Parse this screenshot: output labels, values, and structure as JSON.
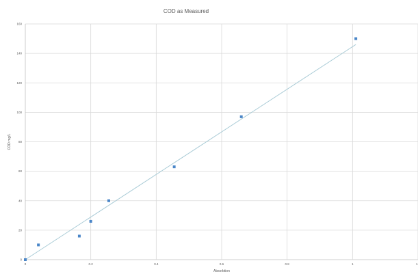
{
  "chart_data": {
    "type": "scatter",
    "title": "COD as Measured",
    "xlabel": "Absorbtion",
    "ylabel": "COD mg/L",
    "xlim": [
      0,
      1.2
    ],
    "ylim": [
      0,
      160
    ],
    "xticks": [
      "0",
      "0.2",
      "0.4",
      "0.6",
      "0.8",
      "1",
      "1.2"
    ],
    "yticks": [
      "0",
      "20",
      "40",
      "60",
      "80",
      "100",
      "120",
      "140",
      "160"
    ],
    "grid": true,
    "series": [
      {
        "points": [
          {
            "x": 0,
            "y": 0
          },
          {
            "x": 0.04,
            "y": 10
          },
          {
            "x": 0.165,
            "y": 16
          },
          {
            "x": 0.2,
            "y": 26
          },
          {
            "x": 0.255,
            "y": 40
          },
          {
            "x": 0.455,
            "y": 63
          },
          {
            "x": 0.66,
            "y": 97
          },
          {
            "x": 1.01,
            "y": 150
          }
        ],
        "color": "#4a86c8"
      }
    ],
    "trendline": {
      "type": "linear",
      "x": [
        0,
        1.01
      ],
      "y": [
        0,
        146
      ],
      "color": "#a9cbd6"
    }
  }
}
